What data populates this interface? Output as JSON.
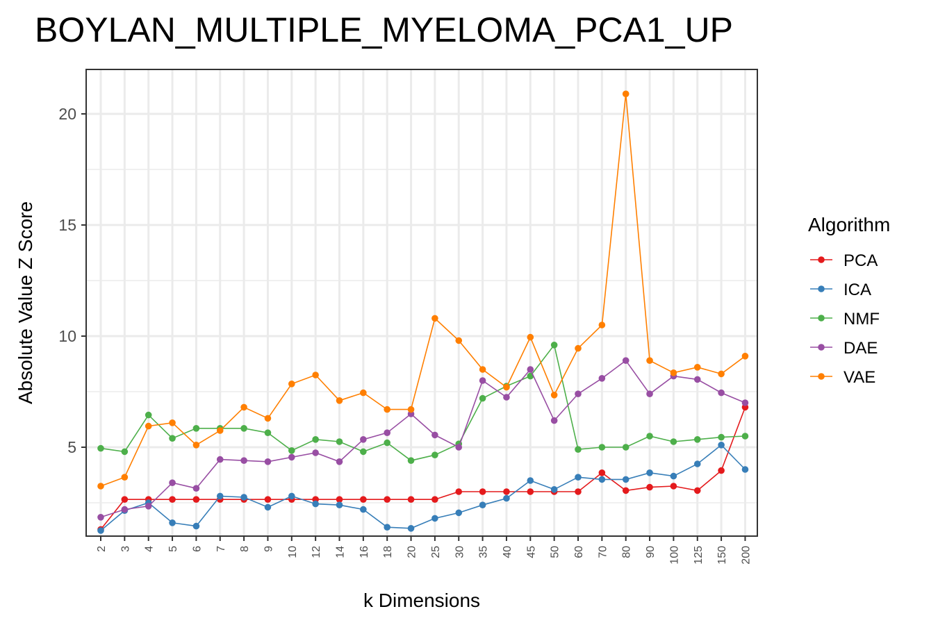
{
  "chart_data": {
    "type": "line",
    "title": "BOYLAN_MULTIPLE_MYELOMA_PCA1_UP",
    "xlabel": "k Dimensions",
    "ylabel": "Absolute Value Z Score",
    "categories": [
      "2",
      "3",
      "4",
      "5",
      "6",
      "7",
      "8",
      "9",
      "10",
      "12",
      "14",
      "16",
      "18",
      "20",
      "25",
      "30",
      "35",
      "40",
      "45",
      "50",
      "60",
      "70",
      "80",
      "90",
      "100",
      "125",
      "150",
      "200"
    ],
    "ylim": [
      1,
      22
    ],
    "yticks": [
      5,
      10,
      15,
      20
    ],
    "grid": true,
    "legend_title": "Algorithm",
    "legend_position": "right",
    "series": [
      {
        "name": "PCA",
        "color": "#e41a1c",
        "values": [
          1.3,
          2.65,
          2.65,
          2.65,
          2.65,
          2.65,
          2.65,
          2.65,
          2.65,
          2.65,
          2.65,
          2.65,
          2.65,
          2.65,
          2.65,
          3.0,
          3.0,
          3.0,
          3.0,
          3.0,
          3.0,
          3.85,
          3.05,
          3.2,
          3.25,
          3.05,
          3.95,
          6.8
        ]
      },
      {
        "name": "ICA",
        "color": "#377eb8",
        "values": [
          1.25,
          2.15,
          2.5,
          1.6,
          1.45,
          2.8,
          2.75,
          2.3,
          2.8,
          2.45,
          2.4,
          2.2,
          1.4,
          1.35,
          1.8,
          2.05,
          2.4,
          2.7,
          3.5,
          3.1,
          3.65,
          3.55,
          3.55,
          3.85,
          3.7,
          4.25,
          5.1,
          4.0
        ]
      },
      {
        "name": "NMF",
        "color": "#4daf4a",
        "values": [
          4.95,
          4.8,
          6.45,
          5.4,
          5.85,
          5.85,
          5.85,
          5.65,
          4.85,
          5.35,
          5.25,
          4.8,
          5.2,
          4.4,
          4.65,
          5.15,
          7.2,
          7.75,
          8.2,
          9.6,
          4.9,
          5.0,
          5.0,
          5.5,
          5.25,
          5.35,
          5.45,
          5.5
        ]
      },
      {
        "name": "DAE",
        "color": "#984ea3",
        "values": [
          1.85,
          2.2,
          2.35,
          3.4,
          3.15,
          4.45,
          4.4,
          4.35,
          4.55,
          4.75,
          4.35,
          5.35,
          5.65,
          6.5,
          5.55,
          5.0,
          8.0,
          7.25,
          8.5,
          6.2,
          7.4,
          8.1,
          8.9,
          7.4,
          8.2,
          8.05,
          7.45,
          7.0
        ]
      },
      {
        "name": "VAE",
        "color": "#ff7f00",
        "values": [
          3.25,
          3.65,
          5.95,
          6.1,
          5.1,
          5.75,
          6.8,
          6.3,
          7.85,
          8.25,
          7.1,
          7.45,
          6.7,
          6.7,
          10.8,
          9.8,
          8.5,
          7.7,
          9.95,
          7.35,
          9.45,
          10.5,
          20.9,
          8.9,
          8.35,
          8.6,
          8.3,
          9.1
        ]
      }
    ]
  }
}
